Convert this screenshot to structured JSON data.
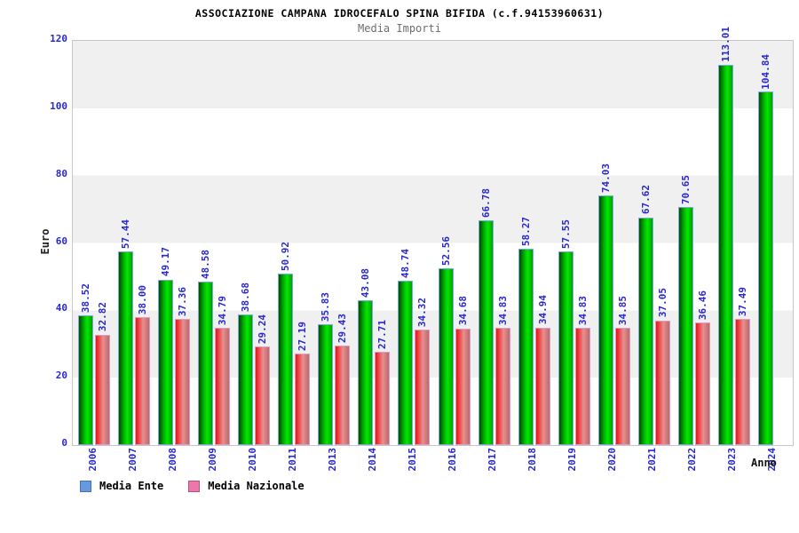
{
  "header": {
    "title": "ASSOCIAZIONE CAMPANA IDROCEFALO SPINA BIFIDA (c.f.94153960631)",
    "subtitle": "Media Importi"
  },
  "chart_data": {
    "type": "bar",
    "title": "Media Importi",
    "categories": [
      "2006",
      "2007",
      "2008",
      "2009",
      "2010",
      "2011",
      "2013",
      "2014",
      "2015",
      "2016",
      "2017",
      "2018",
      "2019",
      "2020",
      "2021",
      "2022",
      "2023",
      "2024"
    ],
    "series": [
      {
        "name": "Media Ente",
        "legend_color": "#6699dd",
        "values": [
          38.52,
          57.44,
          49.17,
          48.58,
          38.68,
          50.92,
          35.83,
          43.08,
          48.74,
          52.56,
          66.78,
          58.27,
          57.55,
          74.03,
          67.62,
          70.65,
          113.01,
          104.84
        ]
      },
      {
        "name": "Media Nazionale",
        "legend_color": "#ee77aa",
        "values": [
          32.82,
          38.0,
          37.36,
          34.79,
          29.24,
          27.19,
          29.43,
          27.71,
          34.32,
          34.68,
          34.83,
          34.94,
          34.83,
          34.85,
          37.05,
          36.46,
          37.49,
          null
        ]
      }
    ],
    "xlabel": "Anno",
    "ylabel": "Euro",
    "ylim": [
      0,
      120
    ],
    "yticks": [
      0,
      20,
      40,
      60,
      80,
      100,
      120
    ],
    "value_label_format": "two decimals, rotated vertical, above each bar",
    "legend_position": "bottom-left",
    "grid": "alternating horizontal gray/white bands every 20 units"
  },
  "colors": {
    "axis_label_blue": "#2929cc",
    "band_gray": "#f0f0f0",
    "plot_border": "#c6c6c6",
    "bar_green_dark": "#004b00",
    "bar_green_bright": "#00e800",
    "bar_green_outline": "#7aabdd",
    "bar_red_bright": "#ee1111",
    "bar_red_pale": "#e98f8f",
    "bar_red_outline": "#dd9cc8",
    "subtitle_gray": "#6e6e6e"
  }
}
